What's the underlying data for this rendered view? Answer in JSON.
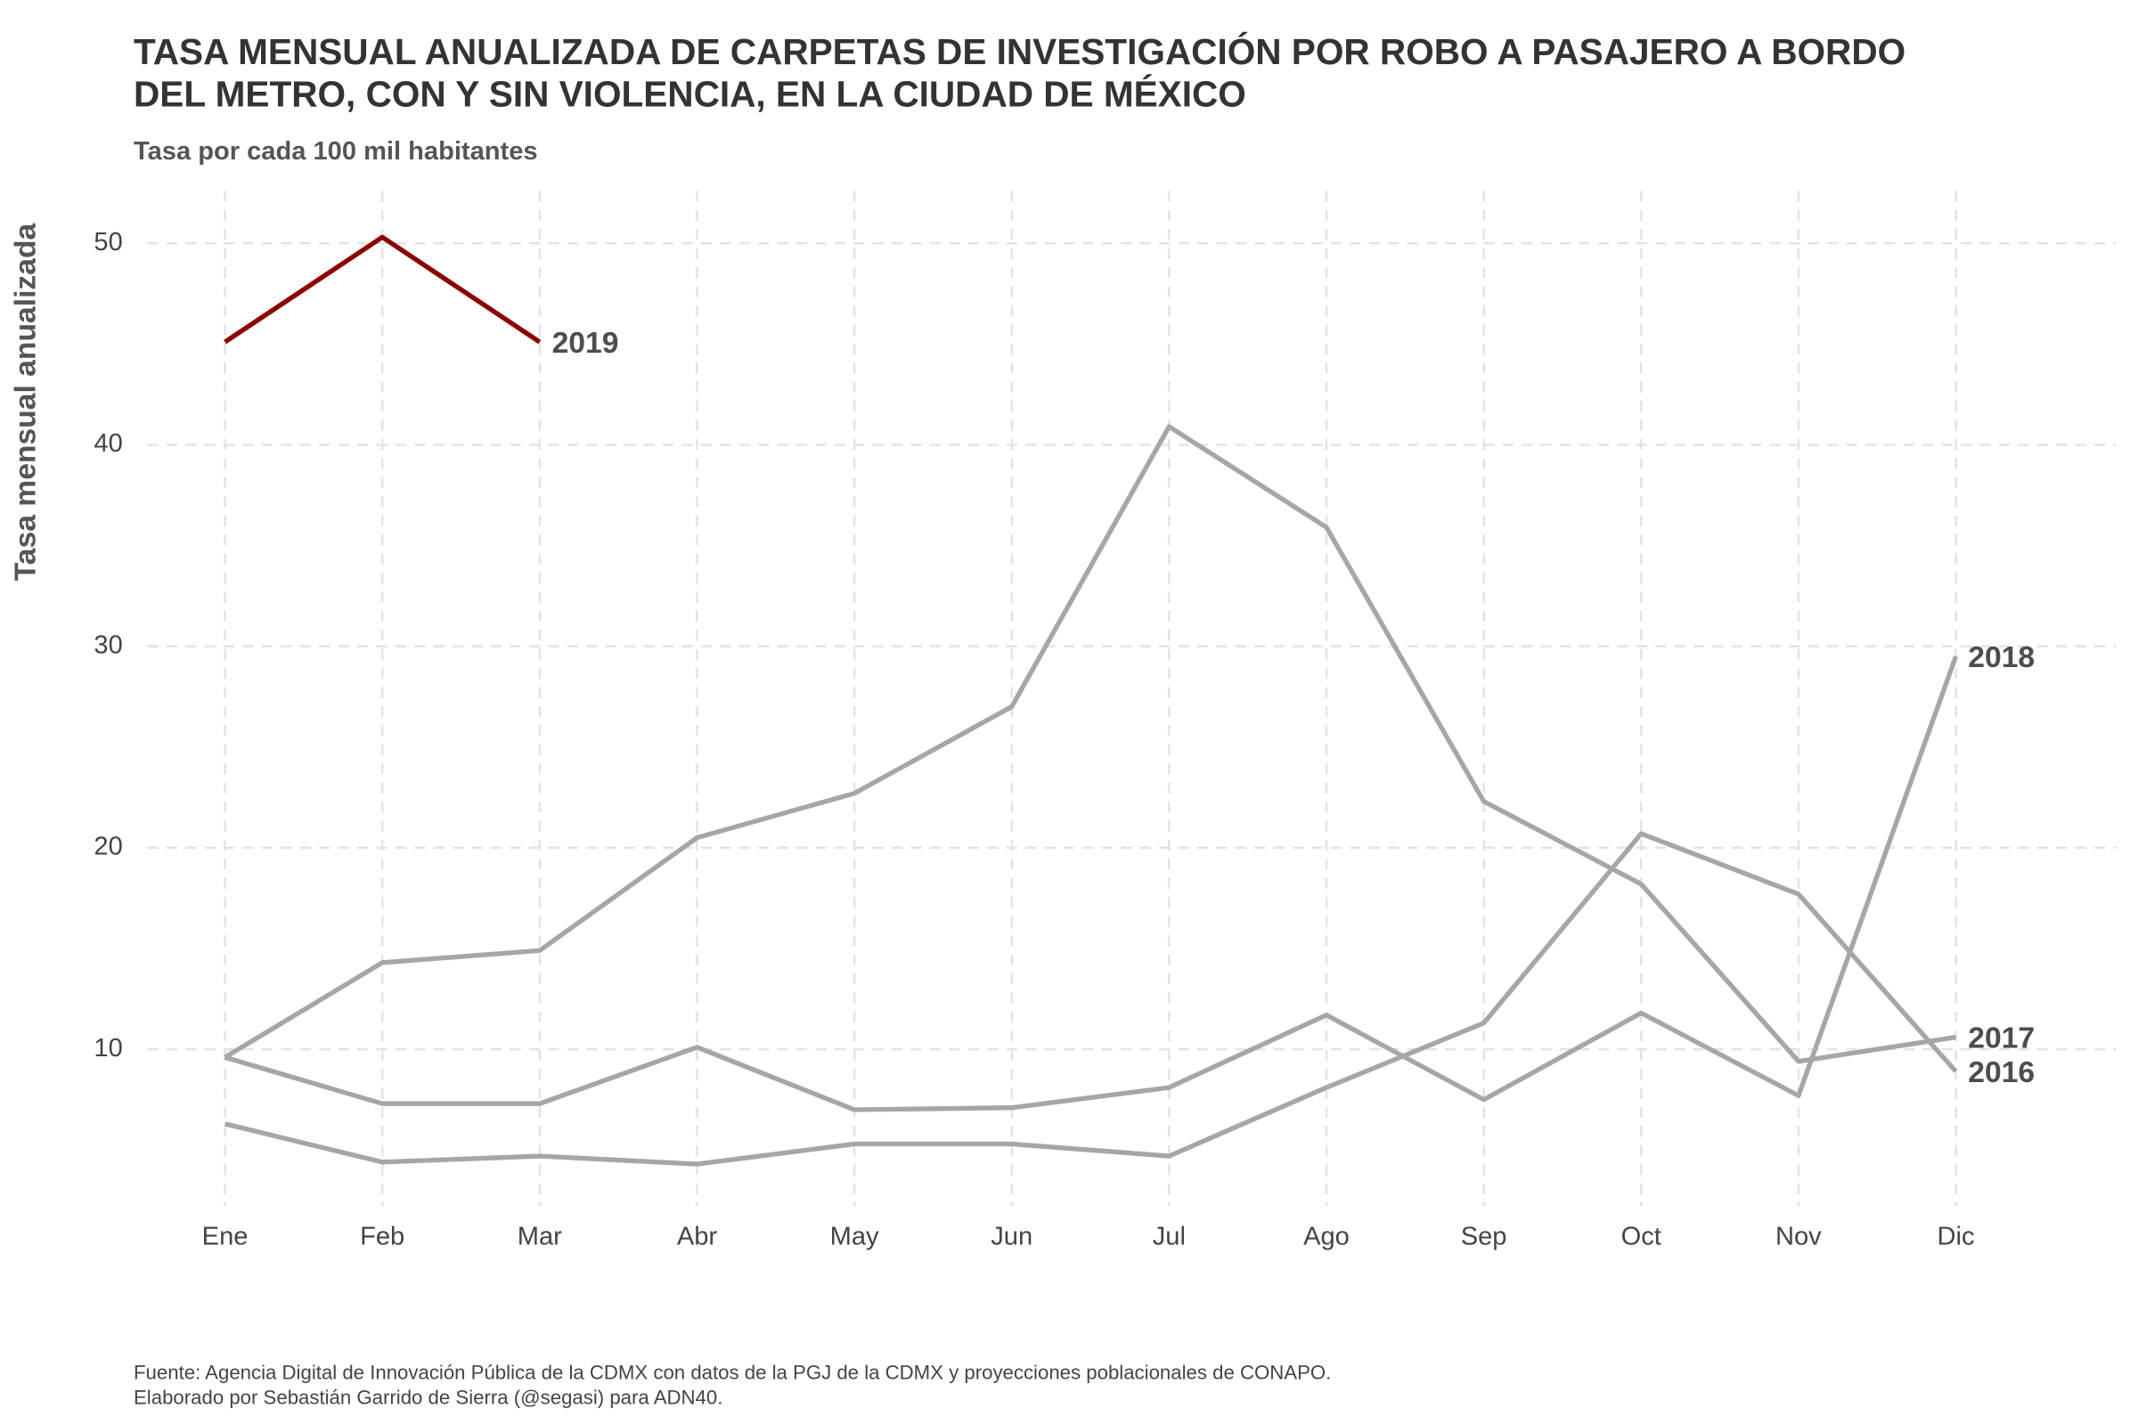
{
  "chart_data": {
    "type": "line",
    "title": [
      "TASA MENSUAL ANUALIZADA DE CARPETAS DE INVESTIGACIÓN POR ROBO A PASAJERO A BORDO",
      "DEL METRO, CON Y SIN VIOLENCIA, EN LA CIUDAD DE MÉXICO"
    ],
    "subtitle": "Tasa por cada 100 mil habitantes",
    "y_label": "Tasa mensual anualizada",
    "caption": [
      "Fuente: Agencia Digital de Innovación Pública de la CDMX con datos de la PGJ de la CDMX y proyecciones poblacionales de CONAPO.",
      "Elaborado por Sebastián Garrido de Sierra (@segasi) para ADN40."
    ],
    "categories": [
      "Ene",
      "Feb",
      "Mar",
      "Abr",
      "May",
      "Jun",
      "Jul",
      "Ago",
      "Sep",
      "Oct",
      "Nov",
      "Dic"
    ],
    "series": [
      {
        "name": "2016",
        "color": "#a6a6a6",
        "values": [
          6.3,
          4.4,
          4.7,
          4.3,
          5.3,
          5.3,
          4.7,
          8.1,
          11.3,
          20.7,
          17.7,
          8.9
        ]
      },
      {
        "name": "2017",
        "color": "#a6a6a6",
        "values": [
          9.6,
          14.3,
          14.9,
          20.5,
          22.7,
          27.0,
          40.9,
          35.9,
          22.3,
          18.2,
          9.4,
          10.6
        ]
      },
      {
        "name": "2018",
        "color": "#a6a6a6",
        "values": [
          9.6,
          7.3,
          7.3,
          10.1,
          7.0,
          7.1,
          8.1,
          11.7,
          7.5,
          11.8,
          7.7,
          29.5
        ]
      },
      {
        "name": "2019",
        "color": "#8b0000",
        "values": [
          45.1,
          50.3,
          45.1,
          null,
          null,
          null,
          null,
          null,
          null,
          null,
          null,
          null
        ]
      }
    ],
    "ylim": [
      2.2,
      52.6
    ],
    "yticks": [
      10,
      20,
      30,
      40,
      50
    ],
    "grid": true
  }
}
